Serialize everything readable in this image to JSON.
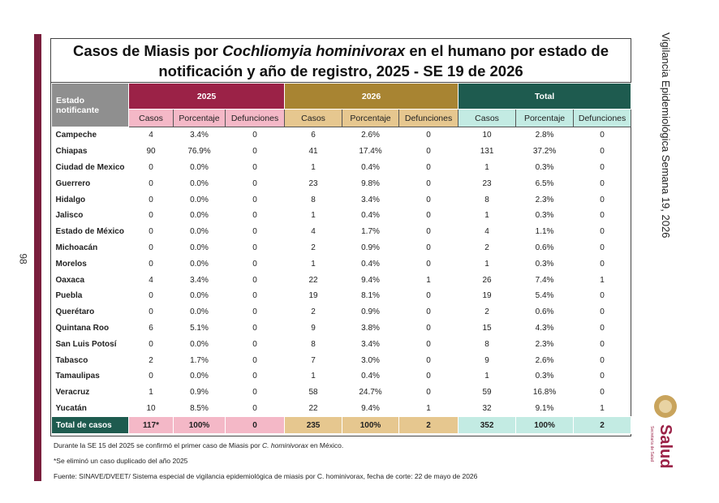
{
  "side_text": "Vigilancia Epidemiológica Semana 19, 2026",
  "page_number": "98",
  "logo": {
    "name": "Salud",
    "subtitle": "Secretaría de Salud"
  },
  "table": {
    "title": [
      "Casos de Miasis por",
      "Cochliomyia hominivorax",
      "en el humano por estado de notificación y año de registro, 2025 - SE 19 de 2026"
    ],
    "header": {
      "row_label": "Estado notificante",
      "groups": [
        {
          "name": "2025",
          "columns": [
            "Casos",
            "Porcentaje",
            "Defunciones"
          ]
        },
        {
          "name": "2026",
          "columns": [
            "Casos",
            "Porcentaje",
            "Defunciones"
          ]
        },
        {
          "name": "Total",
          "columns": [
            "Casos",
            "Porcentaje",
            "Defunciones"
          ]
        }
      ]
    },
    "rows": [
      [
        "Campeche",
        "4",
        "3.4%",
        "0",
        "6",
        "2.6%",
        "0",
        "10",
        "2.8%",
        "0"
      ],
      [
        "Chiapas",
        "90",
        "76.9%",
        "0",
        "41",
        "17.4%",
        "0",
        "131",
        "37.2%",
        "0"
      ],
      [
        "Ciudad de Mexico",
        "0",
        "0.0%",
        "0",
        "1",
        "0.4%",
        "0",
        "1",
        "0.3%",
        "0"
      ],
      [
        "Guerrero",
        "0",
        "0.0%",
        "0",
        "23",
        "9.8%",
        "0",
        "23",
        "6.5%",
        "0"
      ],
      [
        "Hidalgo",
        "0",
        "0.0%",
        "0",
        "8",
        "3.4%",
        "0",
        "8",
        "2.3%",
        "0"
      ],
      [
        "Jalisco",
        "0",
        "0.0%",
        "0",
        "1",
        "0.4%",
        "0",
        "1",
        "0.3%",
        "0"
      ],
      [
        "Estado de México",
        "0",
        "0.0%",
        "0",
        "4",
        "1.7%",
        "0",
        "4",
        "1.1%",
        "0"
      ],
      [
        "Michoacán",
        "0",
        "0.0%",
        "0",
        "2",
        "0.9%",
        "0",
        "2",
        "0.6%",
        "0"
      ],
      [
        "Morelos",
        "0",
        "0.0%",
        "0",
        "1",
        "0.4%",
        "0",
        "1",
        "0.3%",
        "0"
      ],
      [
        "Oaxaca",
        "4",
        "3.4%",
        "0",
        "22",
        "9.4%",
        "1",
        "26",
        "7.4%",
        "1"
      ],
      [
        "Puebla",
        "0",
        "0.0%",
        "0",
        "19",
        "8.1%",
        "0",
        "19",
        "5.4%",
        "0"
      ],
      [
        "Querétaro",
        "0",
        "0.0%",
        "0",
        "2",
        "0.9%",
        "0",
        "2",
        "0.6%",
        "0"
      ],
      [
        "Quintana Roo",
        "6",
        "5.1%",
        "0",
        "9",
        "3.8%",
        "0",
        "15",
        "4.3%",
        "0"
      ],
      [
        "San Luis Potosí",
        "0",
        "0.0%",
        "0",
        "8",
        "3.4%",
        "0",
        "8",
        "2.3%",
        "0"
      ],
      [
        "Tabasco",
        "2",
        "1.7%",
        "0",
        "7",
        "3.0%",
        "0",
        "9",
        "2.6%",
        "0"
      ],
      [
        "Tamaulipas",
        "0",
        "0.0%",
        "0",
        "1",
        "0.4%",
        "0",
        "1",
        "0.3%",
        "0"
      ],
      [
        "Veracruz",
        "1",
        "0.9%",
        "0",
        "58",
        "24.7%",
        "0",
        "59",
        "16.8%",
        "0"
      ],
      [
        "Yucatán",
        "10",
        "8.5%",
        "0",
        "22",
        "9.4%",
        "1",
        "32",
        "9.1%",
        "1"
      ]
    ],
    "total": [
      "Total de casos",
      "117*",
      "100%",
      "0",
      "235",
      "100%",
      "2",
      "352",
      "100%",
      "2"
    ]
  },
  "notes": [
    [
      "Durante la SE 15 del 2025 se confirmó el primer caso de Miasis por",
      "C. hominivorax",
      "en México."
    ],
    [
      "*Se eliminó un caso duplicado del año 2025"
    ],
    [
      "Fuente: SINAVE/DVEET/ Sistema especial de vigilancia epidemiológica de miasis por C. hominivorax, fecha de corte: 22 de mayo de 2026"
    ]
  ]
}
